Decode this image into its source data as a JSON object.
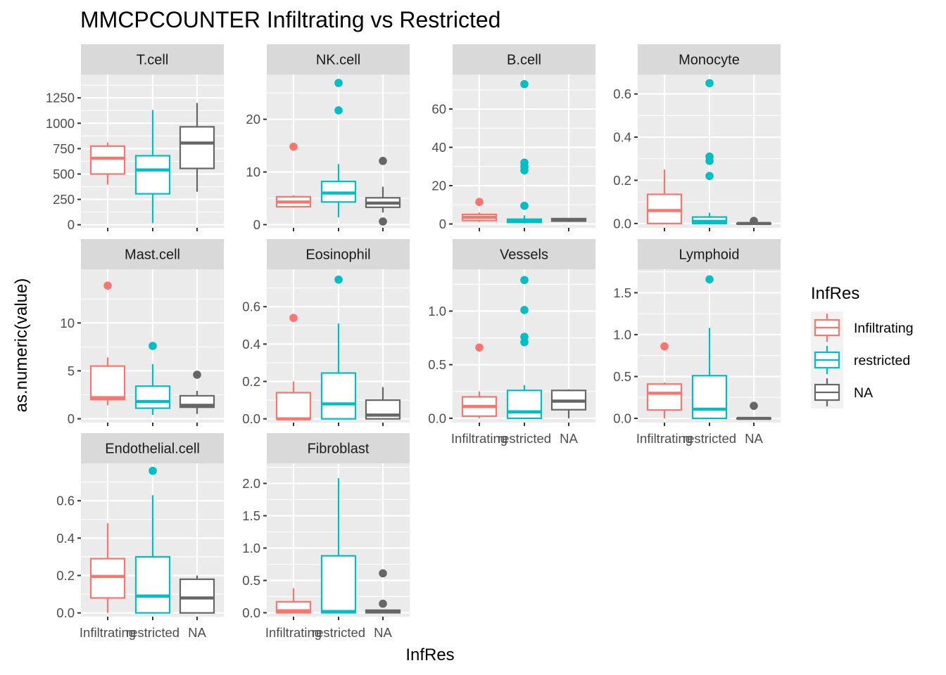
{
  "chart_data": {
    "type": "boxplot",
    "title": "MMCPCOUNTER Infiltrating vs Restricted",
    "xlabel": "InfRes",
    "ylabel": "as.numeric(value)",
    "categories": [
      "Infiltrating",
      "restricted",
      "NA"
    ],
    "legend": {
      "title": "InfRes",
      "position": "right",
      "entries": [
        {
          "label": "Infiltrating",
          "color": "#F8766D"
        },
        {
          "label": "restricted",
          "color": "#00BFC4"
        },
        {
          "label": "NA",
          "color": "#666666"
        }
      ]
    },
    "colors": {
      "Infiltrating": "#F8766D",
      "restricted": "#00BFC4",
      "NA": "#666666"
    },
    "facets": [
      {
        "name": "T.cell",
        "ylim": [
          -30,
          1480
        ],
        "yticks": [
          0,
          250,
          500,
          750,
          1000,
          1250
        ],
        "tick_labels": [
          "0",
          "250",
          "500",
          "750",
          "1000",
          "1250"
        ],
        "show_x_labels": false,
        "boxes": [
          {
            "group": "Infiltrating",
            "min": 395,
            "q1": 500,
            "median": 655,
            "q3": 775,
            "max": 810,
            "outliers": []
          },
          {
            "group": "restricted",
            "min": 15,
            "q1": 305,
            "median": 540,
            "q3": 680,
            "max": 1130,
            "outliers": []
          },
          {
            "group": "NA",
            "min": 325,
            "q1": 555,
            "median": 805,
            "q3": 965,
            "max": 1200,
            "outliers": []
          }
        ]
      },
      {
        "name": "NK.cell",
        "ylim": [
          -0.6,
          28.5
        ],
        "yticks": [
          0,
          10,
          20
        ],
        "tick_labels": [
          "0",
          "10",
          "20"
        ],
        "show_x_labels": false,
        "boxes": [
          {
            "group": "Infiltrating",
            "min": 3.2,
            "q1": 3.4,
            "median": 4.3,
            "q3": 5.3,
            "max": 5.6,
            "outliers": [
              14.8
            ]
          },
          {
            "group": "restricted",
            "min": 1.4,
            "q1": 4.3,
            "median": 6.0,
            "q3": 8.2,
            "max": 11.5,
            "outliers": [
              21.7,
              26.9
            ]
          },
          {
            "group": "NA",
            "min": 2.3,
            "q1": 3.3,
            "median": 4.1,
            "q3": 5.1,
            "max": 7.2,
            "outliers": [
              0.6,
              12.1
            ]
          }
        ]
      },
      {
        "name": "B.cell",
        "ylim": [
          -2,
          78
        ],
        "yticks": [
          0,
          20,
          40,
          60
        ],
        "tick_labels": [
          "0",
          "20",
          "40",
          "60"
        ],
        "show_x_labels": false,
        "boxes": [
          {
            "group": "Infiltrating",
            "min": 1.0,
            "q1": 1.8,
            "median": 3.5,
            "q3": 5.0,
            "max": 6.0,
            "outliers": [
              11.5
            ]
          },
          {
            "group": "restricted",
            "min": 0.3,
            "q1": 0.8,
            "median": 1.5,
            "q3": 2.5,
            "max": 4.5,
            "outliers": [
              9.5,
              28.0,
              30.0,
              32.0,
              73.0
            ]
          },
          {
            "group": "NA",
            "min": 1.0,
            "q1": 1.5,
            "median": 2.0,
            "q3": 2.8,
            "max": 3.0,
            "outliers": []
          }
        ]
      },
      {
        "name": "Monocyte",
        "ylim": [
          -0.02,
          0.69
        ],
        "yticks": [
          0,
          0.2,
          0.4,
          0.6
        ],
        "tick_labels": [
          "0.0",
          "0.2",
          "0.4",
          "0.6"
        ],
        "show_x_labels": false,
        "boxes": [
          {
            "group": "Infiltrating",
            "min": 0.0,
            "q1": 0.0,
            "median": 0.06,
            "q3": 0.135,
            "max": 0.25,
            "outliers": []
          },
          {
            "group": "restricted",
            "min": 0.0,
            "q1": 0.0,
            "median": 0.01,
            "q3": 0.03,
            "max": 0.05,
            "outliers": [
              0.22,
              0.29,
              0.31,
              0.65
            ]
          },
          {
            "group": "NA",
            "min": 0.0,
            "q1": 0.0,
            "median": 0.0,
            "q3": 0.0,
            "max": 0.005,
            "outliers": [
              0.012
            ]
          }
        ]
      },
      {
        "name": "Mast.cell",
        "ylim": [
          -0.4,
          15.6
        ],
        "yticks": [
          0,
          5,
          10
        ],
        "tick_labels": [
          "0",
          "5",
          "10"
        ],
        "show_x_labels": false,
        "boxes": [
          {
            "group": "Infiltrating",
            "min": 1.4,
            "q1": 2.0,
            "median": 2.2,
            "q3": 5.5,
            "max": 6.4,
            "outliers": [
              13.9
            ]
          },
          {
            "group": "restricted",
            "min": 0.4,
            "q1": 1.1,
            "median": 1.8,
            "q3": 3.4,
            "max": 5.7,
            "outliers": [
              7.6
            ]
          },
          {
            "group": "NA",
            "min": 0.5,
            "q1": 1.2,
            "median": 1.4,
            "q3": 2.4,
            "max": 2.9,
            "outliers": [
              4.6
            ]
          }
        ]
      },
      {
        "name": "Eosinophil",
        "ylim": [
          -0.02,
          0.8
        ],
        "yticks": [
          0,
          0.2,
          0.4,
          0.6
        ],
        "tick_labels": [
          "0.0",
          "0.2",
          "0.4",
          "0.6"
        ],
        "show_x_labels": false,
        "boxes": [
          {
            "group": "Infiltrating",
            "min": 0.0,
            "q1": 0.0,
            "median": 0.0,
            "q3": 0.14,
            "max": 0.2,
            "outliers": [
              0.54
            ]
          },
          {
            "group": "restricted",
            "min": 0.0,
            "q1": 0.0,
            "median": 0.08,
            "q3": 0.245,
            "max": 0.51,
            "outliers": [
              0.745
            ]
          },
          {
            "group": "NA",
            "min": 0.0,
            "q1": 0.0,
            "median": 0.02,
            "q3": 0.1,
            "max": 0.17,
            "outliers": []
          }
        ]
      },
      {
        "name": "Vessels",
        "ylim": [
          -0.04,
          1.39
        ],
        "yticks": [
          0,
          0.5,
          1.0
        ],
        "tick_labels": [
          "0.0",
          "0.5",
          "1.0"
        ],
        "show_x_labels": true,
        "boxes": [
          {
            "group": "Infiltrating",
            "min": 0.0,
            "q1": 0.02,
            "median": 0.11,
            "q3": 0.2,
            "max": 0.25,
            "outliers": [
              0.66
            ]
          },
          {
            "group": "restricted",
            "min": 0.0,
            "q1": 0.0,
            "median": 0.06,
            "q3": 0.26,
            "max": 0.31,
            "outliers": [
              0.71,
              0.76,
              1.01,
              1.29
            ]
          },
          {
            "group": "NA",
            "min": 0.0,
            "q1": 0.08,
            "median": 0.16,
            "q3": 0.26,
            "max": 0.27,
            "outliers": []
          }
        ]
      },
      {
        "name": "Lymphoid",
        "ylim": [
          -0.05,
          1.78
        ],
        "yticks": [
          0,
          0.5,
          1.0,
          1.5
        ],
        "tick_labels": [
          "0.0",
          "0.5",
          "1.0",
          "1.5"
        ],
        "show_x_labels": true,
        "boxes": [
          {
            "group": "Infiltrating",
            "min": 0.0,
            "q1": 0.1,
            "median": 0.3,
            "q3": 0.41,
            "max": 0.43,
            "outliers": [
              0.86
            ]
          },
          {
            "group": "restricted",
            "min": 0.0,
            "q1": 0.0,
            "median": 0.11,
            "q3": 0.51,
            "max": 1.08,
            "outliers": [
              1.66
            ]
          },
          {
            "group": "NA",
            "min": 0.0,
            "q1": 0.0,
            "median": 0.0,
            "q3": 0.0,
            "max": 0.01,
            "outliers": [
              0.15
            ]
          }
        ]
      },
      {
        "name": "Endothelial.cell",
        "ylim": [
          -0.02,
          0.8
        ],
        "yticks": [
          0,
          0.2,
          0.4,
          0.6
        ],
        "tick_labels": [
          "0.0",
          "0.2",
          "0.4",
          "0.6"
        ],
        "show_x_labels": true,
        "boxes": [
          {
            "group": "Infiltrating",
            "min": 0.0,
            "q1": 0.08,
            "median": 0.195,
            "q3": 0.29,
            "max": 0.48,
            "outliers": []
          },
          {
            "group": "restricted",
            "min": 0.0,
            "q1": 0.0,
            "median": 0.09,
            "q3": 0.3,
            "max": 0.63,
            "outliers": [
              0.76
            ]
          },
          {
            "group": "NA",
            "min": 0.0,
            "q1": 0.0,
            "median": 0.08,
            "q3": 0.18,
            "max": 0.2,
            "outliers": []
          }
        ]
      },
      {
        "name": "Fibroblast",
        "ylim": [
          -0.06,
          2.31
        ],
        "yticks": [
          0,
          0.5,
          1.0,
          1.5,
          2.0
        ],
        "tick_labels": [
          "0.0",
          "0.5",
          "1.0",
          "1.5",
          "2.0"
        ],
        "show_x_labels": true,
        "boxes": [
          {
            "group": "Infiltrating",
            "min": 0.0,
            "q1": 0.0,
            "median": 0.03,
            "q3": 0.17,
            "max": 0.38,
            "outliers": []
          },
          {
            "group": "restricted",
            "min": 0.0,
            "q1": 0.0,
            "median": 0.02,
            "q3": 0.88,
            "max": 2.08,
            "outliers": []
          },
          {
            "group": "NA",
            "min": 0.0,
            "q1": 0.0,
            "median": 0.02,
            "q3": 0.04,
            "max": 0.05,
            "outliers": [
              0.14,
              0.61
            ]
          }
        ]
      }
    ]
  }
}
